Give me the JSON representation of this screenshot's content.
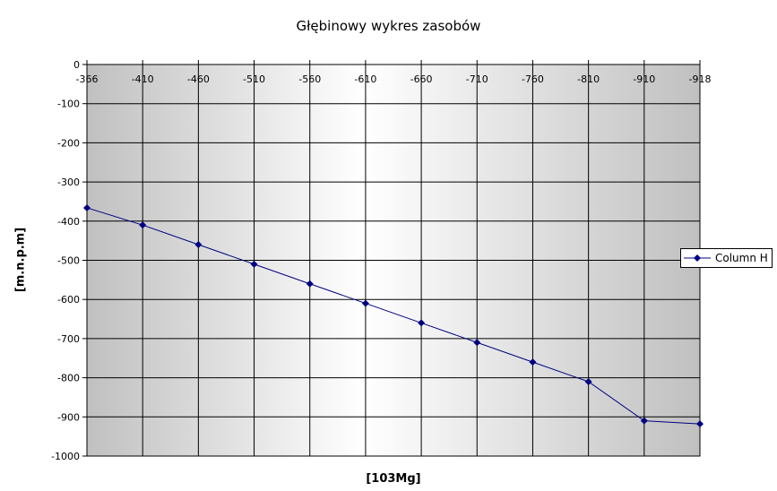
{
  "chart_data": {
    "type": "line",
    "title": "Głębinowy wykres zasobów",
    "xlabel": "[103Mg]",
    "ylabel": "[m.n.p.m]",
    "categories": [
      "-366",
      "-410",
      "-460",
      "-510",
      "-560",
      "-610",
      "-660",
      "-710",
      "-760",
      "-810",
      "-910",
      "-918"
    ],
    "series": [
      {
        "name": "Column H",
        "values": [
          -366,
          -410,
          -460,
          -510,
          -560,
          -610,
          -660,
          -710,
          -760,
          -810,
          -910,
          -918
        ],
        "color": "#000080"
      }
    ],
    "ylim": [
      -1000,
      0
    ],
    "yticks": [
      "0",
      "-100",
      "-200",
      "-300",
      "-400",
      "-500",
      "-600",
      "-700",
      "-800",
      "-900",
      "-1000"
    ],
    "x_axis_position": "top",
    "grid": true,
    "legend_position": "right",
    "background": "gradient gray-white-gray"
  }
}
